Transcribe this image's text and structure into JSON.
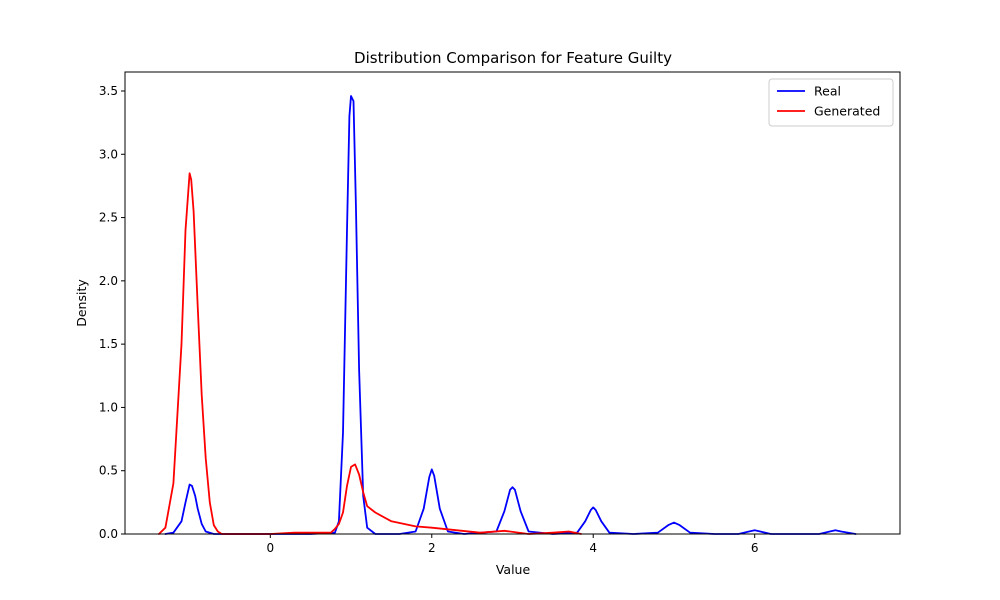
{
  "chart_data": {
    "type": "line",
    "title": "Distribution Comparison for Feature Guilty",
    "xlabel": "Value",
    "ylabel": "Density",
    "xlim": [
      -1.8,
      7.8
    ],
    "ylim": [
      0,
      3.65
    ],
    "x_ticks": [
      0,
      2,
      4,
      6
    ],
    "y_ticks": [
      0.0,
      0.5,
      1.0,
      1.5,
      2.0,
      2.5,
      3.0,
      3.5
    ],
    "x_tick_labels": [
      "0",
      "2",
      "4",
      "6"
    ],
    "y_tick_labels": [
      "0.0",
      "0.5",
      "1.0",
      "1.5",
      "2.0",
      "2.5",
      "3.0",
      "3.5"
    ],
    "grid": false,
    "legend": {
      "placement": "top-right",
      "entries": [
        "Real",
        "Generated"
      ]
    },
    "series": [
      {
        "name": "Real",
        "color": "#0000ff",
        "x": [
          -1.3,
          -1.2,
          -1.1,
          -1.05,
          -1.0,
          -0.97,
          -0.93,
          -0.9,
          -0.85,
          -0.8,
          -0.7,
          -0.5,
          0.0,
          0.5,
          0.8,
          0.85,
          0.9,
          0.95,
          0.98,
          1.0,
          1.03,
          1.06,
          1.1,
          1.15,
          1.2,
          1.3,
          1.6,
          1.8,
          1.9,
          1.97,
          2.0,
          2.03,
          2.1,
          2.2,
          2.4,
          2.8,
          2.9,
          2.97,
          3.0,
          3.03,
          3.1,
          3.2,
          3.5,
          3.8,
          3.9,
          3.97,
          4.0,
          4.03,
          4.1,
          4.2,
          4.5,
          4.8,
          4.93,
          5.0,
          5.07,
          5.2,
          5.5,
          5.8,
          5.93,
          6.0,
          6.07,
          6.2,
          6.5,
          6.8,
          6.93,
          7.0,
          7.07,
          7.25
        ],
        "y": [
          0.0,
          0.01,
          0.1,
          0.25,
          0.39,
          0.38,
          0.3,
          0.2,
          0.08,
          0.02,
          0.0,
          0.0,
          0.0,
          0.0,
          0.01,
          0.1,
          0.8,
          2.4,
          3.3,
          3.46,
          3.42,
          2.6,
          1.3,
          0.3,
          0.05,
          0.0,
          0.0,
          0.02,
          0.2,
          0.45,
          0.51,
          0.46,
          0.2,
          0.02,
          0.0,
          0.02,
          0.18,
          0.35,
          0.37,
          0.35,
          0.18,
          0.02,
          0.0,
          0.01,
          0.1,
          0.19,
          0.21,
          0.19,
          0.1,
          0.01,
          0.0,
          0.01,
          0.07,
          0.09,
          0.07,
          0.01,
          0.0,
          0.0,
          0.02,
          0.03,
          0.02,
          0.0,
          0.0,
          0.0,
          0.02,
          0.03,
          0.02,
          0.0
        ]
      },
      {
        "name": "Generated",
        "color": "#ff0000",
        "x": [
          -1.38,
          -1.3,
          -1.2,
          -1.1,
          -1.05,
          -1.0,
          -0.98,
          -0.95,
          -0.9,
          -0.85,
          -0.8,
          -0.75,
          -0.7,
          -0.65,
          -0.6,
          -0.5,
          0.0,
          0.3,
          0.6,
          0.75,
          0.8,
          0.85,
          0.9,
          0.95,
          1.0,
          1.05,
          1.1,
          1.15,
          1.2,
          1.3,
          1.5,
          1.8,
          2.0,
          2.3,
          2.6,
          2.9,
          3.2,
          3.5,
          3.7,
          3.85
        ],
        "y": [
          0.0,
          0.05,
          0.4,
          1.5,
          2.4,
          2.85,
          2.8,
          2.55,
          1.8,
          1.1,
          0.6,
          0.25,
          0.07,
          0.02,
          0.0,
          0.0,
          0.0,
          0.01,
          0.01,
          0.01,
          0.04,
          0.08,
          0.17,
          0.38,
          0.53,
          0.55,
          0.47,
          0.33,
          0.22,
          0.17,
          0.1,
          0.06,
          0.05,
          0.03,
          0.01,
          0.025,
          0.0,
          0.01,
          0.02,
          0.0
        ]
      }
    ]
  }
}
